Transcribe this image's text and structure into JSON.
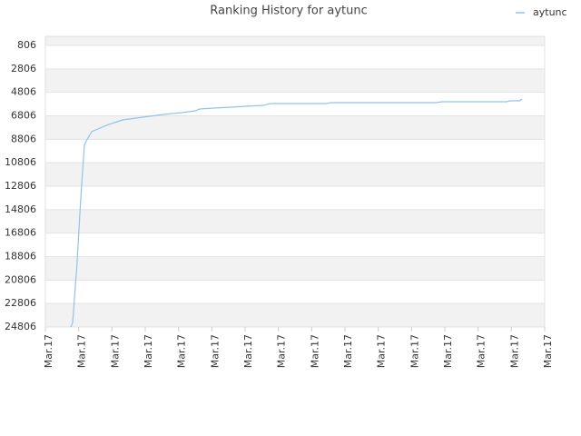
{
  "chart_data": {
    "type": "line",
    "title": "Ranking History for aytunc",
    "x": [
      0.76,
      0.82,
      0.95,
      1.06,
      1.17,
      1.23,
      1.39,
      1.64,
      1.91,
      2.32,
      2.73,
      3.14,
      3.55,
      4.09,
      4.5,
      4.64,
      5.05,
      5.59,
      6.0,
      6.55,
      6.76,
      8.45,
      8.59,
      11.73,
      11.92,
      13.85,
      13.96,
      14.24,
      14.32
    ],
    "series": [
      {
        "name": "aytunc",
        "color": "#90c3ee",
        "values": [
          24806,
          24420,
          19390,
          13970,
          9320,
          8936,
          8160,
          7850,
          7540,
          7155,
          7000,
          6845,
          6690,
          6536,
          6380,
          6226,
          6150,
          6070,
          5990,
          5917,
          5760,
          5760,
          5684,
          5684,
          5607,
          5607,
          5530,
          5530,
          5375
        ]
      }
    ],
    "xlim": [
      0,
      15
    ],
    "xticks": [
      {
        "value": 0,
        "label": "Mar.17"
      },
      {
        "value": 1,
        "label": "Mar.17"
      },
      {
        "value": 2,
        "label": "Mar.17"
      },
      {
        "value": 3,
        "label": "Mar.17"
      },
      {
        "value": 4,
        "label": "Mar.17"
      },
      {
        "value": 5,
        "label": "Mar.17"
      },
      {
        "value": 6,
        "label": "Mar.17"
      },
      {
        "value": 7,
        "label": "Mar.17"
      },
      {
        "value": 8,
        "label": "Mar.17"
      },
      {
        "value": 9,
        "label": "Mar.17"
      },
      {
        "value": 10,
        "label": "Mar.17"
      },
      {
        "value": 11,
        "label": "Mar.17"
      },
      {
        "value": 12,
        "label": "Mar.17"
      },
      {
        "value": 13,
        "label": "Mar.17"
      },
      {
        "value": 14,
        "label": "Mar.17"
      },
      {
        "value": 15,
        "label": "Mar.17"
      }
    ],
    "ylim": [
      24806,
      31
    ],
    "yticks": [
      806,
      2806,
      4806,
      6806,
      8806,
      10806,
      12806,
      14806,
      16806,
      18806,
      20806,
      22806,
      24806
    ],
    "grid": true,
    "legend": "top-right"
  }
}
